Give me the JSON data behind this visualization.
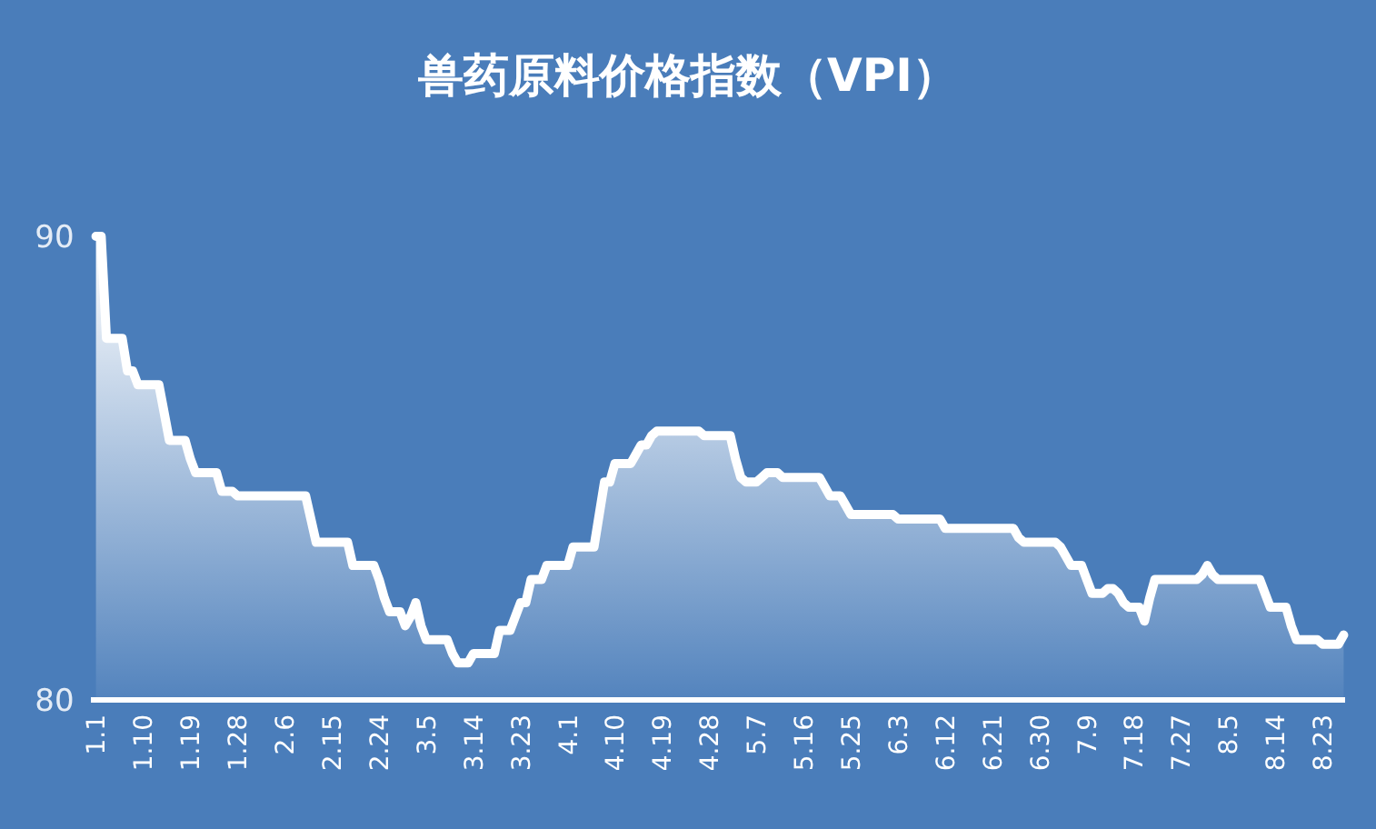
{
  "chart_data": {
    "type": "area",
    "title": "兽药原料价格指数（VPI）",
    "color": "#ffffff",
    "categories": [
      "1.1",
      null,
      null,
      null,
      null,
      null,
      null,
      null,
      null,
      "1.10",
      null,
      null,
      null,
      null,
      null,
      null,
      null,
      null,
      "1.19",
      null,
      null,
      null,
      null,
      null,
      null,
      null,
      null,
      "1.28",
      null,
      null,
      null,
      null,
      null,
      null,
      null,
      null,
      "2.6",
      null,
      null,
      null,
      null,
      null,
      null,
      null,
      null,
      "2.15",
      null,
      null,
      null,
      null,
      null,
      null,
      null,
      null,
      "2.24",
      null,
      null,
      null,
      null,
      null,
      null,
      null,
      null,
      "3.5",
      null,
      null,
      null,
      null,
      null,
      null,
      null,
      null,
      "3.14",
      null,
      null,
      null,
      null,
      null,
      null,
      null,
      null,
      "3.23",
      null,
      null,
      null,
      null,
      null,
      null,
      null,
      null,
      "4.1",
      null,
      null,
      null,
      null,
      null,
      null,
      null,
      null,
      "4.10",
      null,
      null,
      null,
      null,
      null,
      null,
      null,
      null,
      "4.19",
      null,
      null,
      null,
      null,
      null,
      null,
      null,
      null,
      "4.28",
      null,
      null,
      null,
      null,
      null,
      null,
      null,
      null,
      "5.7",
      null,
      null,
      null,
      null,
      null,
      null,
      null,
      null,
      "5.16",
      null,
      null,
      null,
      null,
      null,
      null,
      null,
      null,
      "5.25",
      null,
      null,
      null,
      null,
      null,
      null,
      null,
      null,
      "6.3",
      null,
      null,
      null,
      null,
      null,
      null,
      null,
      null,
      "6.12",
      null,
      null,
      null,
      null,
      null,
      null,
      null,
      null,
      "6.21",
      null,
      null,
      null,
      null,
      null,
      null,
      null,
      null,
      "6.30",
      null,
      null,
      null,
      null,
      null,
      null,
      null,
      null,
      "7.9",
      null,
      null,
      null,
      null,
      null,
      null,
      null,
      null,
      "7.18",
      null,
      null,
      null,
      null,
      null,
      null,
      null,
      null,
      "7.27",
      null,
      null,
      null,
      null,
      null,
      null,
      null,
      null,
      "8.5",
      null,
      null,
      null,
      null,
      null,
      null,
      null,
      null,
      "8.14",
      null,
      null,
      null,
      null,
      null,
      null,
      null,
      null,
      "8.23",
      null,
      null,
      null,
      null
    ],
    "values": [
      90.0,
      90.0,
      87.8,
      87.8,
      87.8,
      87.8,
      87.1,
      87.1,
      86.8,
      86.8,
      86.8,
      86.8,
      86.8,
      86.2,
      85.6,
      85.6,
      85.6,
      85.6,
      85.2,
      84.9,
      84.9,
      84.9,
      84.9,
      84.9,
      84.5,
      84.5,
      84.5,
      84.4,
      84.4,
      84.4,
      84.4,
      84.4,
      84.4,
      84.4,
      84.4,
      84.4,
      84.4,
      84.4,
      84.4,
      84.4,
      84.4,
      83.9,
      83.4,
      83.4,
      83.4,
      83.4,
      83.4,
      83.4,
      83.4,
      82.9,
      82.9,
      82.9,
      82.9,
      82.9,
      82.6,
      82.2,
      81.9,
      81.9,
      81.9,
      81.6,
      81.8,
      82.1,
      81.6,
      81.3,
      81.3,
      81.3,
      81.3,
      81.3,
      81.0,
      80.8,
      80.8,
      80.8,
      81.0,
      81.0,
      81.0,
      81.0,
      81.0,
      81.5,
      81.5,
      81.5,
      81.8,
      82.1,
      82.1,
      82.6,
      82.6,
      82.6,
      82.9,
      82.9,
      82.9,
      82.9,
      82.9,
      83.3,
      83.3,
      83.3,
      83.3,
      83.3,
      84.0,
      84.7,
      84.7,
      85.1,
      85.1,
      85.1,
      85.1,
      85.3,
      85.5,
      85.5,
      85.7,
      85.8,
      85.8,
      85.8,
      85.8,
      85.8,
      85.8,
      85.8,
      85.8,
      85.8,
      85.7,
      85.7,
      85.7,
      85.7,
      85.7,
      85.7,
      85.2,
      84.8,
      84.7,
      84.7,
      84.7,
      84.8,
      84.9,
      84.9,
      84.9,
      84.8,
      84.8,
      84.8,
      84.8,
      84.8,
      84.8,
      84.8,
      84.8,
      84.6,
      84.4,
      84.4,
      84.4,
      84.2,
      84.0,
      84.0,
      84.0,
      84.0,
      84.0,
      84.0,
      84.0,
      84.0,
      84.0,
      83.9,
      83.9,
      83.9,
      83.9,
      83.9,
      83.9,
      83.9,
      83.9,
      83.9,
      83.7,
      83.7,
      83.7,
      83.7,
      83.7,
      83.7,
      83.7,
      83.7,
      83.7,
      83.7,
      83.7,
      83.7,
      83.7,
      83.7,
      83.5,
      83.4,
      83.4,
      83.4,
      83.4,
      83.4,
      83.4,
      83.4,
      83.3,
      83.1,
      82.9,
      82.9,
      82.9,
      82.6,
      82.3,
      82.3,
      82.3,
      82.4,
      82.4,
      82.3,
      82.1,
      82.0,
      82.0,
      82.0,
      81.7,
      82.2,
      82.6,
      82.6,
      82.6,
      82.6,
      82.6,
      82.6,
      82.6,
      82.6,
      82.6,
      82.7,
      82.9,
      82.7,
      82.6,
      82.6,
      82.6,
      82.6,
      82.6,
      82.6,
      82.6,
      82.6,
      82.6,
      82.3,
      82.0,
      82.0,
      82.0,
      82.0,
      81.6,
      81.3,
      81.3,
      81.3,
      81.3,
      81.3,
      81.2,
      81.2,
      81.2,
      81.2,
      81.4
    ],
    "ylim": [
      80,
      90
    ],
    "yticks": [
      80,
      90
    ],
    "grid": false
  }
}
